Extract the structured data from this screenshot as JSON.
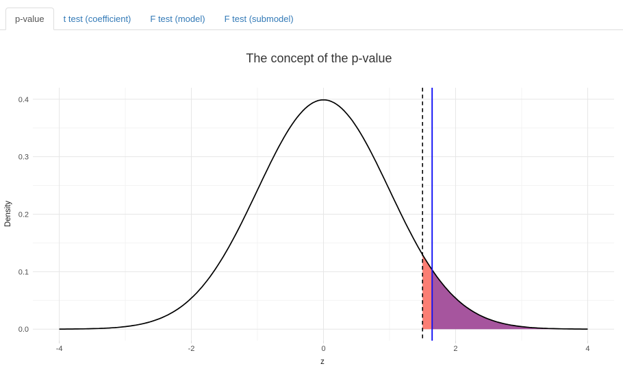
{
  "tabs": {
    "items": [
      {
        "label": "p-value",
        "active": true
      },
      {
        "label": "t test (coefficient)",
        "active": false
      },
      {
        "label": "F test (model)",
        "active": false
      },
      {
        "label": "F test (submodel)",
        "active": false
      }
    ]
  },
  "chart_data": {
    "type": "area",
    "title": "The concept of the p-value",
    "xlabel": "z",
    "ylabel": "Density",
    "curve": "standard normal density N(0,1)",
    "xlim": [
      -4,
      4
    ],
    "ylim": [
      0.0,
      0.4
    ],
    "x_ticks": [
      -4,
      -2,
      0,
      2,
      4
    ],
    "x_tick_labels": [
      "-4",
      "-2",
      "0",
      "2",
      "4"
    ],
    "y_ticks": [
      0.0,
      0.1,
      0.2,
      0.3,
      0.4
    ],
    "y_tick_labels": [
      "0.0",
      "0.1",
      "0.2",
      "0.3",
      "0.4"
    ],
    "vlines": [
      {
        "name": "observed-statistic",
        "x": 1.5,
        "style": "dashed",
        "color": "#000000"
      },
      {
        "name": "critical-value",
        "x": 1.645,
        "style": "solid",
        "color": "#0f0ff5"
      }
    ],
    "shaded_regions": [
      {
        "name": "p-value-area",
        "from": 1.5,
        "to": 1.645,
        "color": "#FB7E74"
      },
      {
        "name": "rejection-area",
        "from": 1.645,
        "to": 4,
        "color": "#A6559E"
      }
    ],
    "grid": {
      "major_color": "#E6E6E6",
      "minor_color": "#F3F3F3",
      "x_minor": [
        -3,
        -1,
        1,
        3
      ],
      "y_minor": [
        0.05,
        0.15,
        0.25,
        0.35
      ]
    },
    "colors": {
      "curve": "#000000",
      "background": "#FFFFFF",
      "tick_label": "#4D4D4D",
      "axis_title": "#1A1A1A",
      "title": "#333333",
      "tick_mark": "#D9D9D9"
    }
  }
}
